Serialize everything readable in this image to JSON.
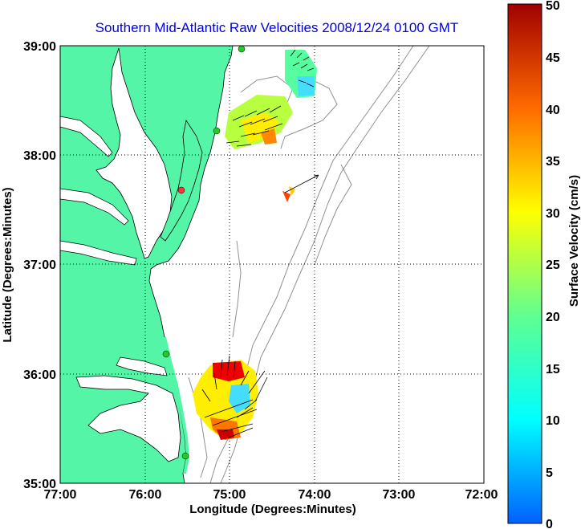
{
  "title": "Southern Mid-Atlantic Raw Velocities 2008/12/24 0100 GMT",
  "x_axis": {
    "label": "Longitude (Degrees:Minutes)",
    "ticks": [
      "77:00",
      "76:00",
      "75:00",
      "74:00",
      "73:00",
      "72:00"
    ]
  },
  "y_axis": {
    "label": "Latitude (Degrees:Minutes)",
    "ticks": [
      "39:00",
      "38:00",
      "37:00",
      "36:00",
      "35:00"
    ]
  },
  "colorbar": {
    "label": "Surface Velocity (cm/s)",
    "ticks": [
      "50",
      "45",
      "40",
      "35",
      "30",
      "25",
      "20",
      "15",
      "10",
      "5",
      "0"
    ],
    "min": 0,
    "max": 50
  },
  "colors": {
    "land": "#55f5a8",
    "water": "#ffffff",
    "coastline": "#000000",
    "bathymetry": "#909090",
    "grid": "#000000",
    "title": "#0000e0",
    "vectors": "#000000"
  },
  "legend_placement": "right colorbar",
  "grid": "dotted",
  "velocity_patches": [
    {
      "name": "northern-offshore",
      "lon": -74.2,
      "lat": 38.75,
      "speed": 14
    },
    {
      "name": "delaware-shelf",
      "lon": -74.7,
      "lat": 38.28,
      "speed": 24
    },
    {
      "name": "central-shelf",
      "lon": -74.3,
      "lat": 37.6,
      "speed": 36
    },
    {
      "name": "hatteras-region",
      "lon": -74.85,
      "lat": 35.8,
      "speed": 26
    }
  ],
  "station_markers": [
    {
      "name": "station-1",
      "lon": -75.12,
      "lat": 39.0,
      "color": "#22cc22"
    },
    {
      "name": "station-2",
      "lon": -75.15,
      "lat": 38.23,
      "color": "#22cc22"
    },
    {
      "name": "station-3",
      "lon": -75.58,
      "lat": 37.71,
      "color": "#ff3333"
    },
    {
      "name": "station-4",
      "lon": -75.72,
      "lat": 36.2,
      "color": "#22cc22"
    },
    {
      "name": "station-5",
      "lon": -75.52,
      "lat": 35.2,
      "color": "#22cc22"
    }
  ]
}
